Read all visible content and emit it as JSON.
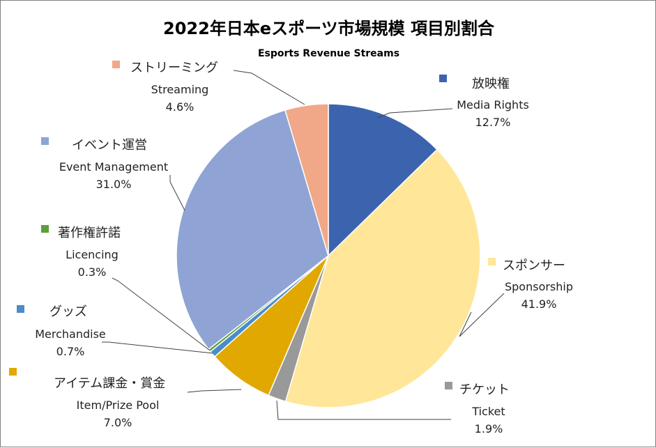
{
  "chart_data": {
    "type": "pie",
    "title": "2022年日本eスポーツ市場規模 項目別割合",
    "subtitle": "Esports Revenue Streams",
    "unit": "%",
    "start_angle_deg": 0,
    "direction": "clockwise",
    "slices": [
      {
        "jp": "放映権",
        "en": "Media Rights",
        "value": 12.7,
        "value_label": "12.7%",
        "color": "#3c64ae"
      },
      {
        "jp": "スポンサー",
        "en": "Sponsorship",
        "value": 41.9,
        "value_label": "41.9%",
        "color": "#ffe699"
      },
      {
        "jp": "チケット",
        "en": "Ticket",
        "value": 1.9,
        "value_label": "1.9%",
        "color": "#999999"
      },
      {
        "jp": "アイテム課金・賞金",
        "en": "Item/Prize Pool",
        "value": 7.0,
        "value_label": "7.0%",
        "color": "#e0a800"
      },
      {
        "jp": "グッズ",
        "en": "Merchandise",
        "value": 0.7,
        "value_label": "0.7%",
        "color": "#4a8cc9"
      },
      {
        "jp": "著作権許諾",
        "en": "Licencing",
        "value": 0.3,
        "value_label": "0.3%",
        "color": "#5e9e3a"
      },
      {
        "jp": "イベント運営",
        "en": "Event Management",
        "value": 31.0,
        "value_label": "31.0%",
        "color": "#8fa4d4"
      },
      {
        "jp": "ストリーミング",
        "en": "Streaming",
        "value": 4.6,
        "value_label": "4.6%",
        "color": "#f0a888"
      }
    ]
  }
}
